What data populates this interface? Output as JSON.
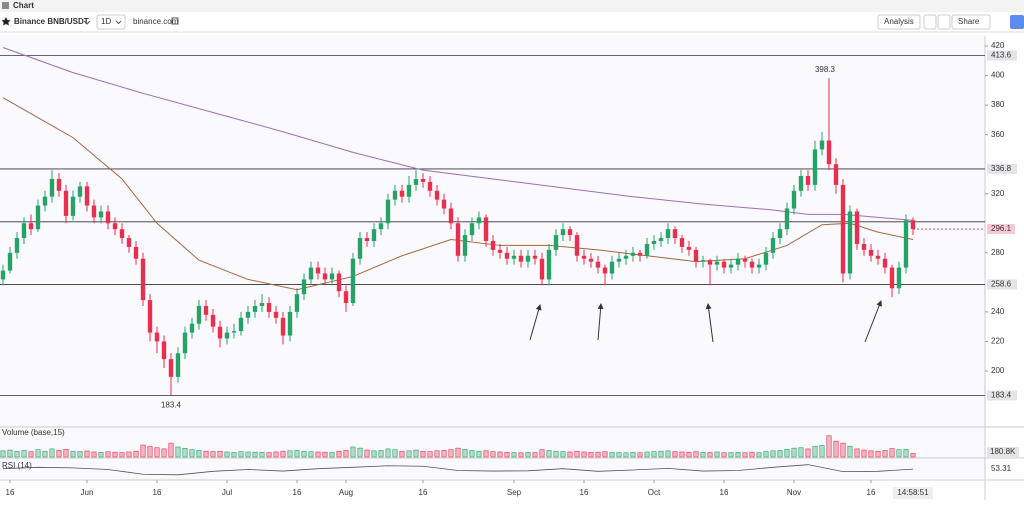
{
  "toolbar": {
    "title": "Chart",
    "symbol": "Binance BNB/USDT",
    "interval": "1D",
    "source": "binance.com",
    "analysis": "Analysis",
    "share": "Share"
  },
  "chart_data": {
    "type": "candlestick",
    "up_color": "#26a269",
    "down_color": "#e8304e",
    "ylim": [
      164.1,
      426.8
    ],
    "yticks": [
      200,
      220,
      240,
      280,
      320,
      360,
      380,
      400,
      420
    ],
    "grid": false,
    "levels": [
      413.6,
      336.8,
      258.6,
      183.4
    ],
    "unlabeled_levels": [
      301
    ],
    "xticks": [
      {
        "value": 1,
        "label": "16"
      },
      {
        "value": 12,
        "label": "Jun"
      },
      {
        "value": 22,
        "label": "16"
      },
      {
        "value": 32,
        "label": "Jul"
      },
      {
        "value": 42,
        "label": "16"
      },
      {
        "value": 49,
        "label": "Aug"
      },
      {
        "value": 60,
        "label": "16"
      },
      {
        "value": 73,
        "label": "Sep"
      },
      {
        "value": 83,
        "label": "16"
      },
      {
        "value": 93,
        "label": "Oct"
      },
      {
        "value": 103,
        "label": "16"
      },
      {
        "value": 113,
        "label": "Nov"
      },
      {
        "value": 124,
        "label": "16"
      }
    ],
    "time": "14:58:51",
    "ohlc": [
      [
        262,
        272,
        258,
        268
      ],
      [
        268,
        284,
        266,
        280
      ],
      [
        280,
        294,
        276,
        290
      ],
      [
        290,
        304,
        286,
        300
      ],
      [
        300,
        306,
        292,
        296
      ],
      [
        296,
        316,
        294,
        312
      ],
      [
        312,
        322,
        308,
        318
      ],
      [
        318,
        336,
        314,
        330
      ],
      [
        330,
        334,
        318,
        322
      ],
      [
        322,
        326,
        300,
        305
      ],
      [
        305,
        322,
        302,
        318
      ],
      [
        318,
        328,
        314,
        325
      ],
      [
        325,
        328,
        308,
        312
      ],
      [
        312,
        316,
        300,
        304
      ],
      [
        304,
        312,
        300,
        308
      ],
      [
        308,
        312,
        296,
        300
      ],
      [
        300,
        304,
        292,
        296
      ],
      [
        296,
        300,
        286,
        290
      ],
      [
        290,
        292,
        280,
        284
      ],
      [
        284,
        288,
        272,
        276
      ],
      [
        276,
        280,
        244,
        248
      ],
      [
        248,
        252,
        220,
        226
      ],
      [
        226,
        230,
        212,
        220
      ],
      [
        220,
        224,
        202,
        208
      ],
      [
        208,
        212,
        183.4,
        196
      ],
      [
        196,
        216,
        192,
        212
      ],
      [
        212,
        230,
        208,
        226
      ],
      [
        226,
        236,
        222,
        232
      ],
      [
        232,
        248,
        228,
        244
      ],
      [
        244,
        248,
        234,
        238
      ],
      [
        238,
        242,
        226,
        230
      ],
      [
        230,
        234,
        216,
        222
      ],
      [
        222,
        230,
        218,
        226
      ],
      [
        226,
        232,
        222,
        227
      ],
      [
        227,
        240,
        224,
        236
      ],
      [
        236,
        244,
        232,
        240
      ],
      [
        240,
        248,
        236,
        244
      ],
      [
        244,
        252,
        240,
        246
      ],
      [
        246,
        250,
        236,
        240
      ],
      [
        240,
        244,
        232,
        236
      ],
      [
        236,
        240,
        218,
        224
      ],
      [
        224,
        244,
        220,
        240
      ],
      [
        240,
        256,
        236,
        252
      ],
      [
        252,
        266,
        248,
        262
      ],
      [
        262,
        274,
        258,
        270
      ],
      [
        270,
        274,
        262,
        266
      ],
      [
        266,
        270,
        258,
        262
      ],
      [
        262,
        270,
        258,
        266
      ],
      [
        266,
        268,
        250,
        254
      ],
      [
        254,
        258,
        240,
        246
      ],
      [
        246,
        280,
        244,
        276
      ],
      [
        276,
        294,
        272,
        290
      ],
      [
        290,
        294,
        284,
        288
      ],
      [
        288,
        300,
        284,
        296
      ],
      [
        296,
        304,
        292,
        300
      ],
      [
        300,
        320,
        296,
        316
      ],
      [
        316,
        326,
        312,
        322
      ],
      [
        322,
        326,
        314,
        318
      ],
      [
        318,
        332,
        314,
        326
      ],
      [
        326,
        336,
        322,
        330
      ],
      [
        330,
        334,
        324,
        328
      ],
      [
        328,
        332,
        318,
        322
      ],
      [
        322,
        326,
        312,
        316
      ],
      [
        316,
        320,
        306,
        310
      ],
      [
        310,
        314,
        296,
        300
      ],
      [
        300,
        304,
        274,
        278
      ],
      [
        278,
        296,
        274,
        292
      ],
      [
        292,
        304,
        288,
        300
      ],
      [
        300,
        308,
        296,
        304
      ],
      [
        304,
        306,
        284,
        288
      ],
      [
        288,
        292,
        278,
        282
      ],
      [
        282,
        286,
        276,
        280
      ],
      [
        280,
        284,
        272,
        276
      ],
      [
        276,
        282,
        272,
        278
      ],
      [
        278,
        282,
        270,
        274
      ],
      [
        274,
        282,
        270,
        278
      ],
      [
        278,
        282,
        272,
        276
      ],
      [
        276,
        280,
        258,
        262
      ],
      [
        262,
        286,
        258,
        282
      ],
      [
        282,
        296,
        278,
        292
      ],
      [
        292,
        300,
        288,
        296
      ],
      [
        296,
        298,
        288,
        292
      ],
      [
        292,
        294,
        274,
        278
      ],
      [
        278,
        282,
        272,
        276
      ],
      [
        276,
        280,
        270,
        274
      ],
      [
        274,
        278,
        266,
        270
      ],
      [
        270,
        272,
        258,
        266
      ],
      [
        266,
        278,
        262,
        274
      ],
      [
        274,
        280,
        270,
        276
      ],
      [
        276,
        282,
        272,
        278
      ],
      [
        278,
        284,
        274,
        280
      ],
      [
        280,
        282,
        274,
        278
      ],
      [
        278,
        290,
        276,
        286
      ],
      [
        286,
        292,
        282,
        288
      ],
      [
        288,
        294,
        284,
        290
      ],
      [
        290,
        300,
        286,
        296
      ],
      [
        296,
        298,
        286,
        290
      ],
      [
        290,
        292,
        280,
        284
      ],
      [
        284,
        288,
        278,
        282
      ],
      [
        282,
        284,
        270,
        274
      ],
      [
        274,
        278,
        270,
        275
      ],
      [
        275,
        276,
        258,
        272
      ],
      [
        272,
        278,
        268,
        274
      ],
      [
        274,
        276,
        266,
        270
      ],
      [
        270,
        276,
        266,
        272
      ],
      [
        272,
        280,
        268,
        276
      ],
      [
        276,
        278,
        270,
        274
      ],
      [
        274,
        276,
        266,
        270
      ],
      [
        270,
        276,
        266,
        272
      ],
      [
        272,
        284,
        268,
        280
      ],
      [
        280,
        294,
        276,
        290
      ],
      [
        290,
        300,
        286,
        296
      ],
      [
        296,
        314,
        292,
        310
      ],
      [
        310,
        326,
        306,
        322
      ],
      [
        322,
        336,
        318,
        332
      ],
      [
        332,
        336,
        322,
        326
      ],
      [
        326,
        356,
        322,
        350
      ],
      [
        350,
        362,
        346,
        356
      ],
      [
        356,
        398.3,
        336,
        340
      ],
      [
        340,
        344,
        320,
        326
      ],
      [
        326,
        330,
        260,
        266
      ],
      [
        266,
        312,
        262,
        308
      ],
      [
        308,
        310,
        282,
        286
      ],
      [
        286,
        290,
        278,
        282
      ],
      [
        282,
        286,
        274,
        278
      ],
      [
        278,
        282,
        272,
        276
      ],
      [
        276,
        280,
        266,
        270
      ],
      [
        270,
        272,
        250,
        256
      ],
      [
        256,
        274,
        252,
        270
      ],
      [
        270,
        306,
        266,
        302
      ],
      [
        302,
        304,
        292,
        296.1
      ]
    ],
    "moving_averages": [
      {
        "color": "#9b6fb5",
        "x": [
          0,
          10,
          20,
          30,
          40,
          50,
          60,
          70,
          80,
          90,
          100,
          110,
          115,
          120,
          130
        ],
        "values": [
          419,
          402,
          388,
          375,
          362,
          348,
          336,
          330,
          324,
          318,
          313,
          309,
          306,
          306,
          302
        ]
      },
      {
        "color": "#a5673f",
        "x": [
          0,
          10,
          17,
          22,
          28,
          35,
          42,
          50,
          57,
          64,
          71,
          78,
          85,
          92,
          99,
          106,
          112,
          117,
          121,
          125,
          130
        ],
        "values": [
          385,
          358,
          330,
          300,
          275,
          262,
          255,
          264,
          278,
          289,
          285,
          285,
          282,
          278,
          274,
          276,
          285,
          299,
          300,
          294,
          289
        ]
      }
    ],
    "volume": {
      "name": "Volume (base,15)",
      "ylim": [
        0,
        1400
      ],
      "current_label": "180.8K",
      "values": [
        320,
        360,
        300,
        340,
        280,
        380,
        300,
        420,
        350,
        400,
        300,
        280,
        310,
        260,
        240,
        270,
        250,
        230,
        260,
        300,
        620,
        540,
        480,
        420,
        720,
        520,
        450,
        380,
        340,
        300,
        280,
        300,
        260,
        240,
        280,
        260,
        250,
        240,
        230,
        260,
        300,
        320,
        340,
        300,
        280,
        260,
        250,
        240,
        300,
        340,
        520,
        460,
        360,
        320,
        340,
        420,
        380,
        300,
        320,
        360,
        300,
        280,
        320,
        340,
        380,
        460,
        400,
        340,
        300,
        320,
        280,
        260,
        240,
        230,
        220,
        240,
        230,
        380,
        340,
        300,
        280,
        260,
        300,
        260,
        240,
        250,
        280,
        240,
        230,
        220,
        240,
        220,
        260,
        280,
        300,
        320,
        280,
        260,
        240,
        280,
        240,
        230,
        260,
        220,
        230,
        240,
        220,
        250,
        230,
        280,
        320,
        340,
        400,
        460,
        480,
        420,
        560,
        600,
        1100,
        820,
        720,
        560,
        420,
        360,
        320,
        300,
        340,
        440,
        380,
        400,
        180.8
      ]
    },
    "rsi": {
      "name": "RSI (14)",
      "ylim": [
        20,
        80
      ],
      "color": "#555555",
      "x": [
        0,
        5,
        10,
        15,
        20,
        25,
        30,
        35,
        40,
        45,
        50,
        55,
        60,
        65,
        70,
        75,
        80,
        85,
        90,
        95,
        100,
        105,
        110,
        115,
        120,
        125,
        130
      ],
      "values": [
        55,
        60,
        58,
        52,
        34,
        32,
        45,
        52,
        46,
        55,
        60,
        66,
        64,
        48,
        46,
        47,
        55,
        45,
        50,
        56,
        46,
        48,
        60,
        70,
        44,
        45,
        53.31
      ]
    }
  }
}
